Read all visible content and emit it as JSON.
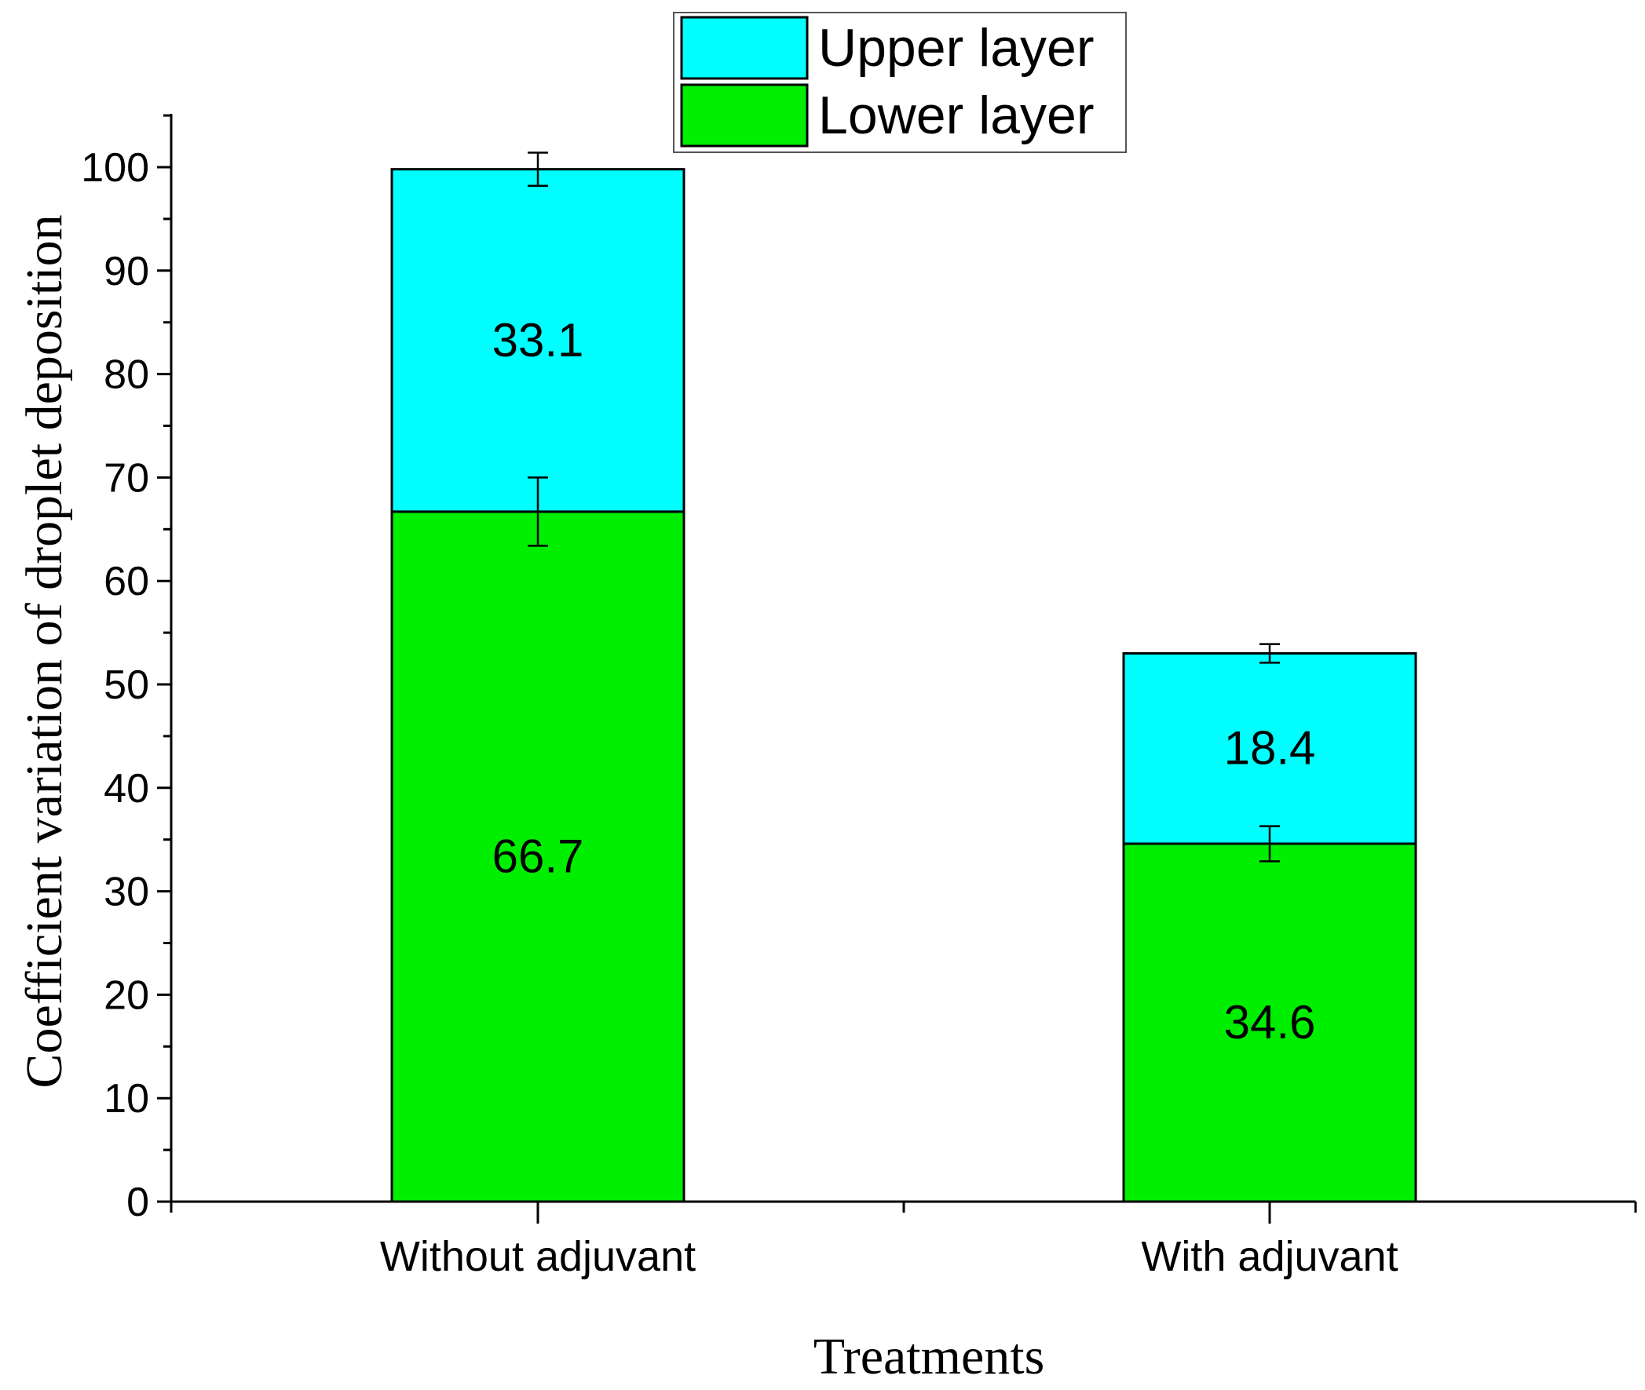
{
  "chart_data": {
    "type": "bar",
    "stacked": true,
    "categories": [
      "Without adjuvant",
      "With adjuvant"
    ],
    "series": [
      {
        "name": "Lower layer",
        "values": [
          66.7,
          34.6
        ],
        "errors": [
          3.3,
          1.7
        ],
        "labels": [
          "66.7",
          "34.6"
        ],
        "color": "#00ee00"
      },
      {
        "name": "Upper layer",
        "values": [
          33.1,
          18.4
        ],
        "errors": [
          1.6,
          0.9
        ],
        "labels": [
          "33.1",
          "18.4"
        ],
        "color": "#00ffff"
      }
    ],
    "xlabel": "Treatments",
    "ylabel": "Coefficient variation of droplet deposition",
    "ylim": [
      0,
      105
    ],
    "yticks": [
      0,
      10,
      20,
      30,
      40,
      50,
      60,
      70,
      80,
      90,
      100
    ],
    "legend": {
      "position": "top-center",
      "order": [
        "Upper layer",
        "Lower layer"
      ]
    },
    "grid": false
  }
}
